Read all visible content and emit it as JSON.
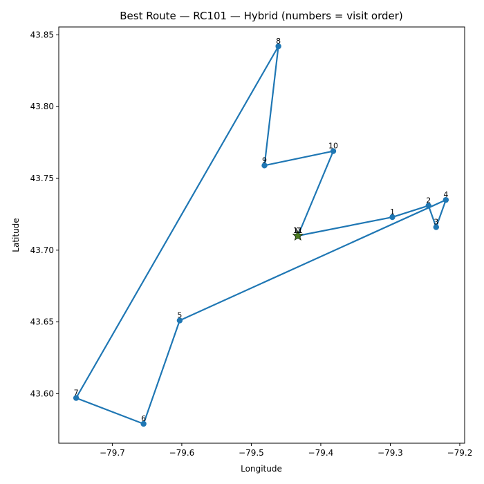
{
  "chart_data": {
    "type": "scatter",
    "title": "Best Route — RC101 — Hybrid (numbers = visit order)",
    "xlabel": "Longitude",
    "ylabel": "Latitude",
    "xlim": [
      -79.777,
      -79.193
    ],
    "ylim": [
      43.5655,
      43.8555
    ],
    "xticks": [
      -79.7,
      -79.6,
      -79.5,
      -79.4,
      -79.3,
      -79.2
    ],
    "xtick_labels": [
      "−79.7",
      "−79.6",
      "−79.5",
      "−79.4",
      "−79.3",
      "−79.2"
    ],
    "yticks": [
      43.6,
      43.65,
      43.7,
      43.75,
      43.8,
      43.85
    ],
    "ytick_labels": [
      "43.60",
      "43.65",
      "43.70",
      "43.75",
      "43.80",
      "43.85"
    ],
    "grid": false,
    "line_color": "#1f77b4",
    "depot": {
      "label": "0",
      "x": -79.433,
      "y": 43.71,
      "color": "#4a7a1e"
    },
    "route": [
      {
        "label": "0",
        "x": -79.433,
        "y": 43.71
      },
      {
        "label": "1",
        "x": -79.297,
        "y": 43.723
      },
      {
        "label": "2",
        "x": -79.245,
        "y": 43.731
      },
      {
        "label": "3",
        "x": -79.234,
        "y": 43.716
      },
      {
        "label": "4",
        "x": -79.22,
        "y": 43.735
      },
      {
        "label": "5",
        "x": -79.603,
        "y": 43.651
      },
      {
        "label": "6",
        "x": -79.655,
        "y": 43.579
      },
      {
        "label": "7",
        "x": -79.752,
        "y": 43.597
      },
      {
        "label": "8",
        "x": -79.461,
        "y": 43.842
      },
      {
        "label": "9",
        "x": -79.481,
        "y": 43.759
      },
      {
        "label": "10",
        "x": -79.382,
        "y": 43.769
      },
      {
        "label": "11",
        "x": -79.433,
        "y": 43.71
      }
    ]
  }
}
